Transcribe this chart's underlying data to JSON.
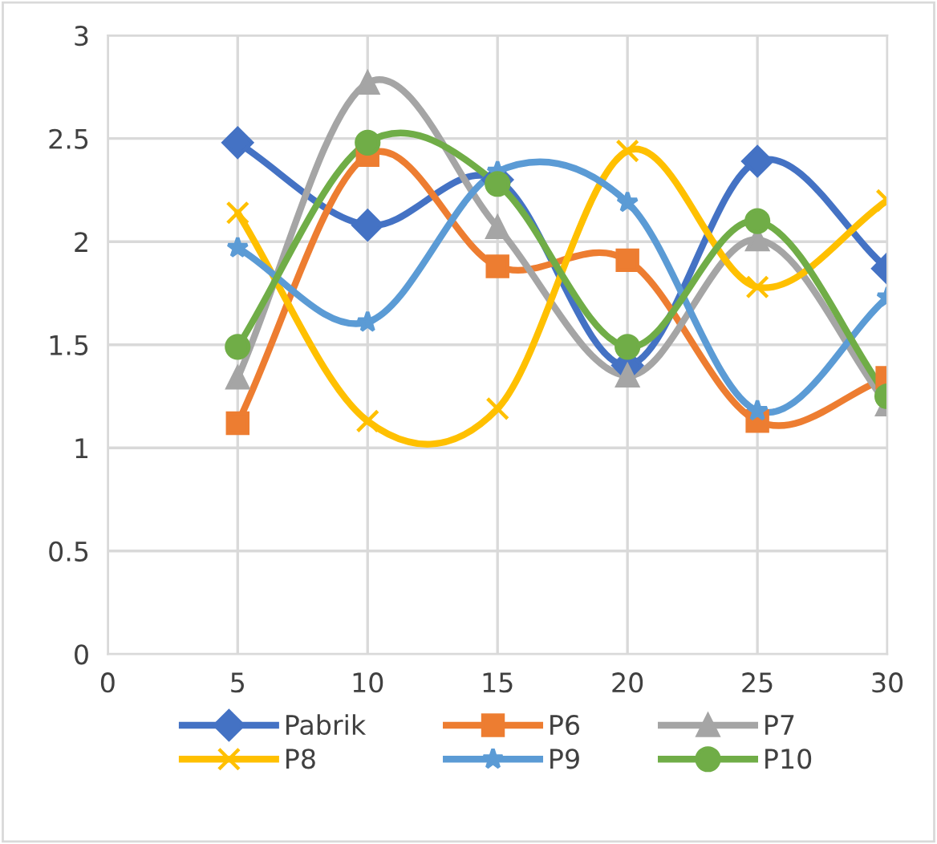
{
  "chart_data": {
    "type": "line",
    "x": [
      5,
      10,
      15,
      20,
      25,
      30
    ],
    "series": [
      {
        "name": "Pabrik",
        "color": "#4472c4",
        "marker": "diamond",
        "values": [
          2.48,
          2.08,
          2.3,
          1.4,
          2.39,
          1.87
        ]
      },
      {
        "name": "P6",
        "color": "#ed7d31",
        "marker": "square",
        "values": [
          1.12,
          2.42,
          1.88,
          1.91,
          1.13,
          1.34
        ]
      },
      {
        "name": "P7",
        "color": "#a5a5a5",
        "marker": "triangle",
        "values": [
          1.34,
          2.77,
          2.07,
          1.35,
          2.01,
          1.21
        ]
      },
      {
        "name": "P8",
        "color": "#ffc000",
        "marker": "cross",
        "values": [
          2.14,
          1.13,
          1.19,
          2.44,
          1.78,
          2.2
        ]
      },
      {
        "name": "P9",
        "color": "#5b9bd5",
        "marker": "star",
        "values": [
          1.97,
          1.61,
          2.34,
          2.19,
          1.18,
          1.73
        ]
      },
      {
        "name": "P10",
        "color": "#70ad47",
        "marker": "circle",
        "values": [
          1.49,
          2.48,
          2.28,
          1.49,
          2.1,
          1.25
        ]
      }
    ],
    "xlim": [
      0,
      30
    ],
    "xticks": [
      0,
      5,
      10,
      15,
      20,
      25,
      30
    ],
    "ylim": [
      0,
      3
    ],
    "yticks": [
      0,
      0.5,
      1,
      1.5,
      2,
      2.5,
      3
    ],
    "grid": true,
    "legend": "bottom",
    "line_style": "solid",
    "tick_labels": true
  }
}
